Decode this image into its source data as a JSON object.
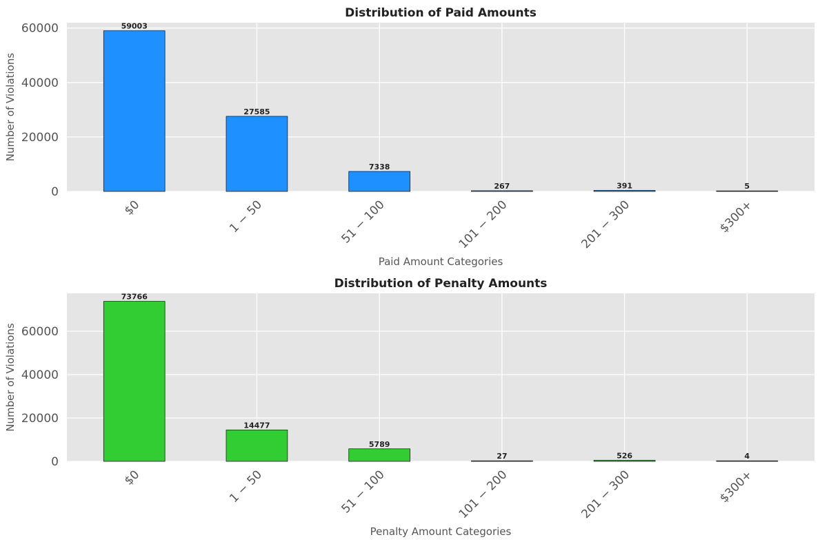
{
  "chart_data": [
    {
      "type": "bar",
      "title": "Distribution of Paid Amounts",
      "xlabel": "Paid Amount Categories",
      "ylabel": "Number of Violations",
      "categories": [
        "$0",
        "1 − 50",
        "51 − 100",
        "101 − 200",
        "201 − 300",
        "$300+"
      ],
      "values": [
        59003,
        27585,
        7338,
        267,
        391,
        5
      ],
      "data_labels": [
        "59003",
        "27585",
        "7338",
        "267",
        "391",
        "5"
      ],
      "yticks": [
        0,
        20000,
        40000,
        60000
      ],
      "ylim": [
        0,
        61953
      ],
      "grid": true,
      "color": "#1e90ff"
    },
    {
      "type": "bar",
      "title": "Distribution of Penalty Amounts",
      "xlabel": "Penalty Amount Categories",
      "ylabel": "Number of Violations",
      "categories": [
        "$0",
        "1 − 50",
        "51 − 100",
        "101 − 200",
        "201 − 300",
        "$300+"
      ],
      "values": [
        73766,
        14477,
        5789,
        27,
        526,
        4
      ],
      "data_labels": [
        "73766",
        "14477",
        "5789",
        "27",
        "526",
        "4"
      ],
      "yticks": [
        0,
        20000,
        40000,
        60000
      ],
      "ylim": [
        0,
        77454
      ],
      "grid": true,
      "color": "#32cd32"
    }
  ]
}
